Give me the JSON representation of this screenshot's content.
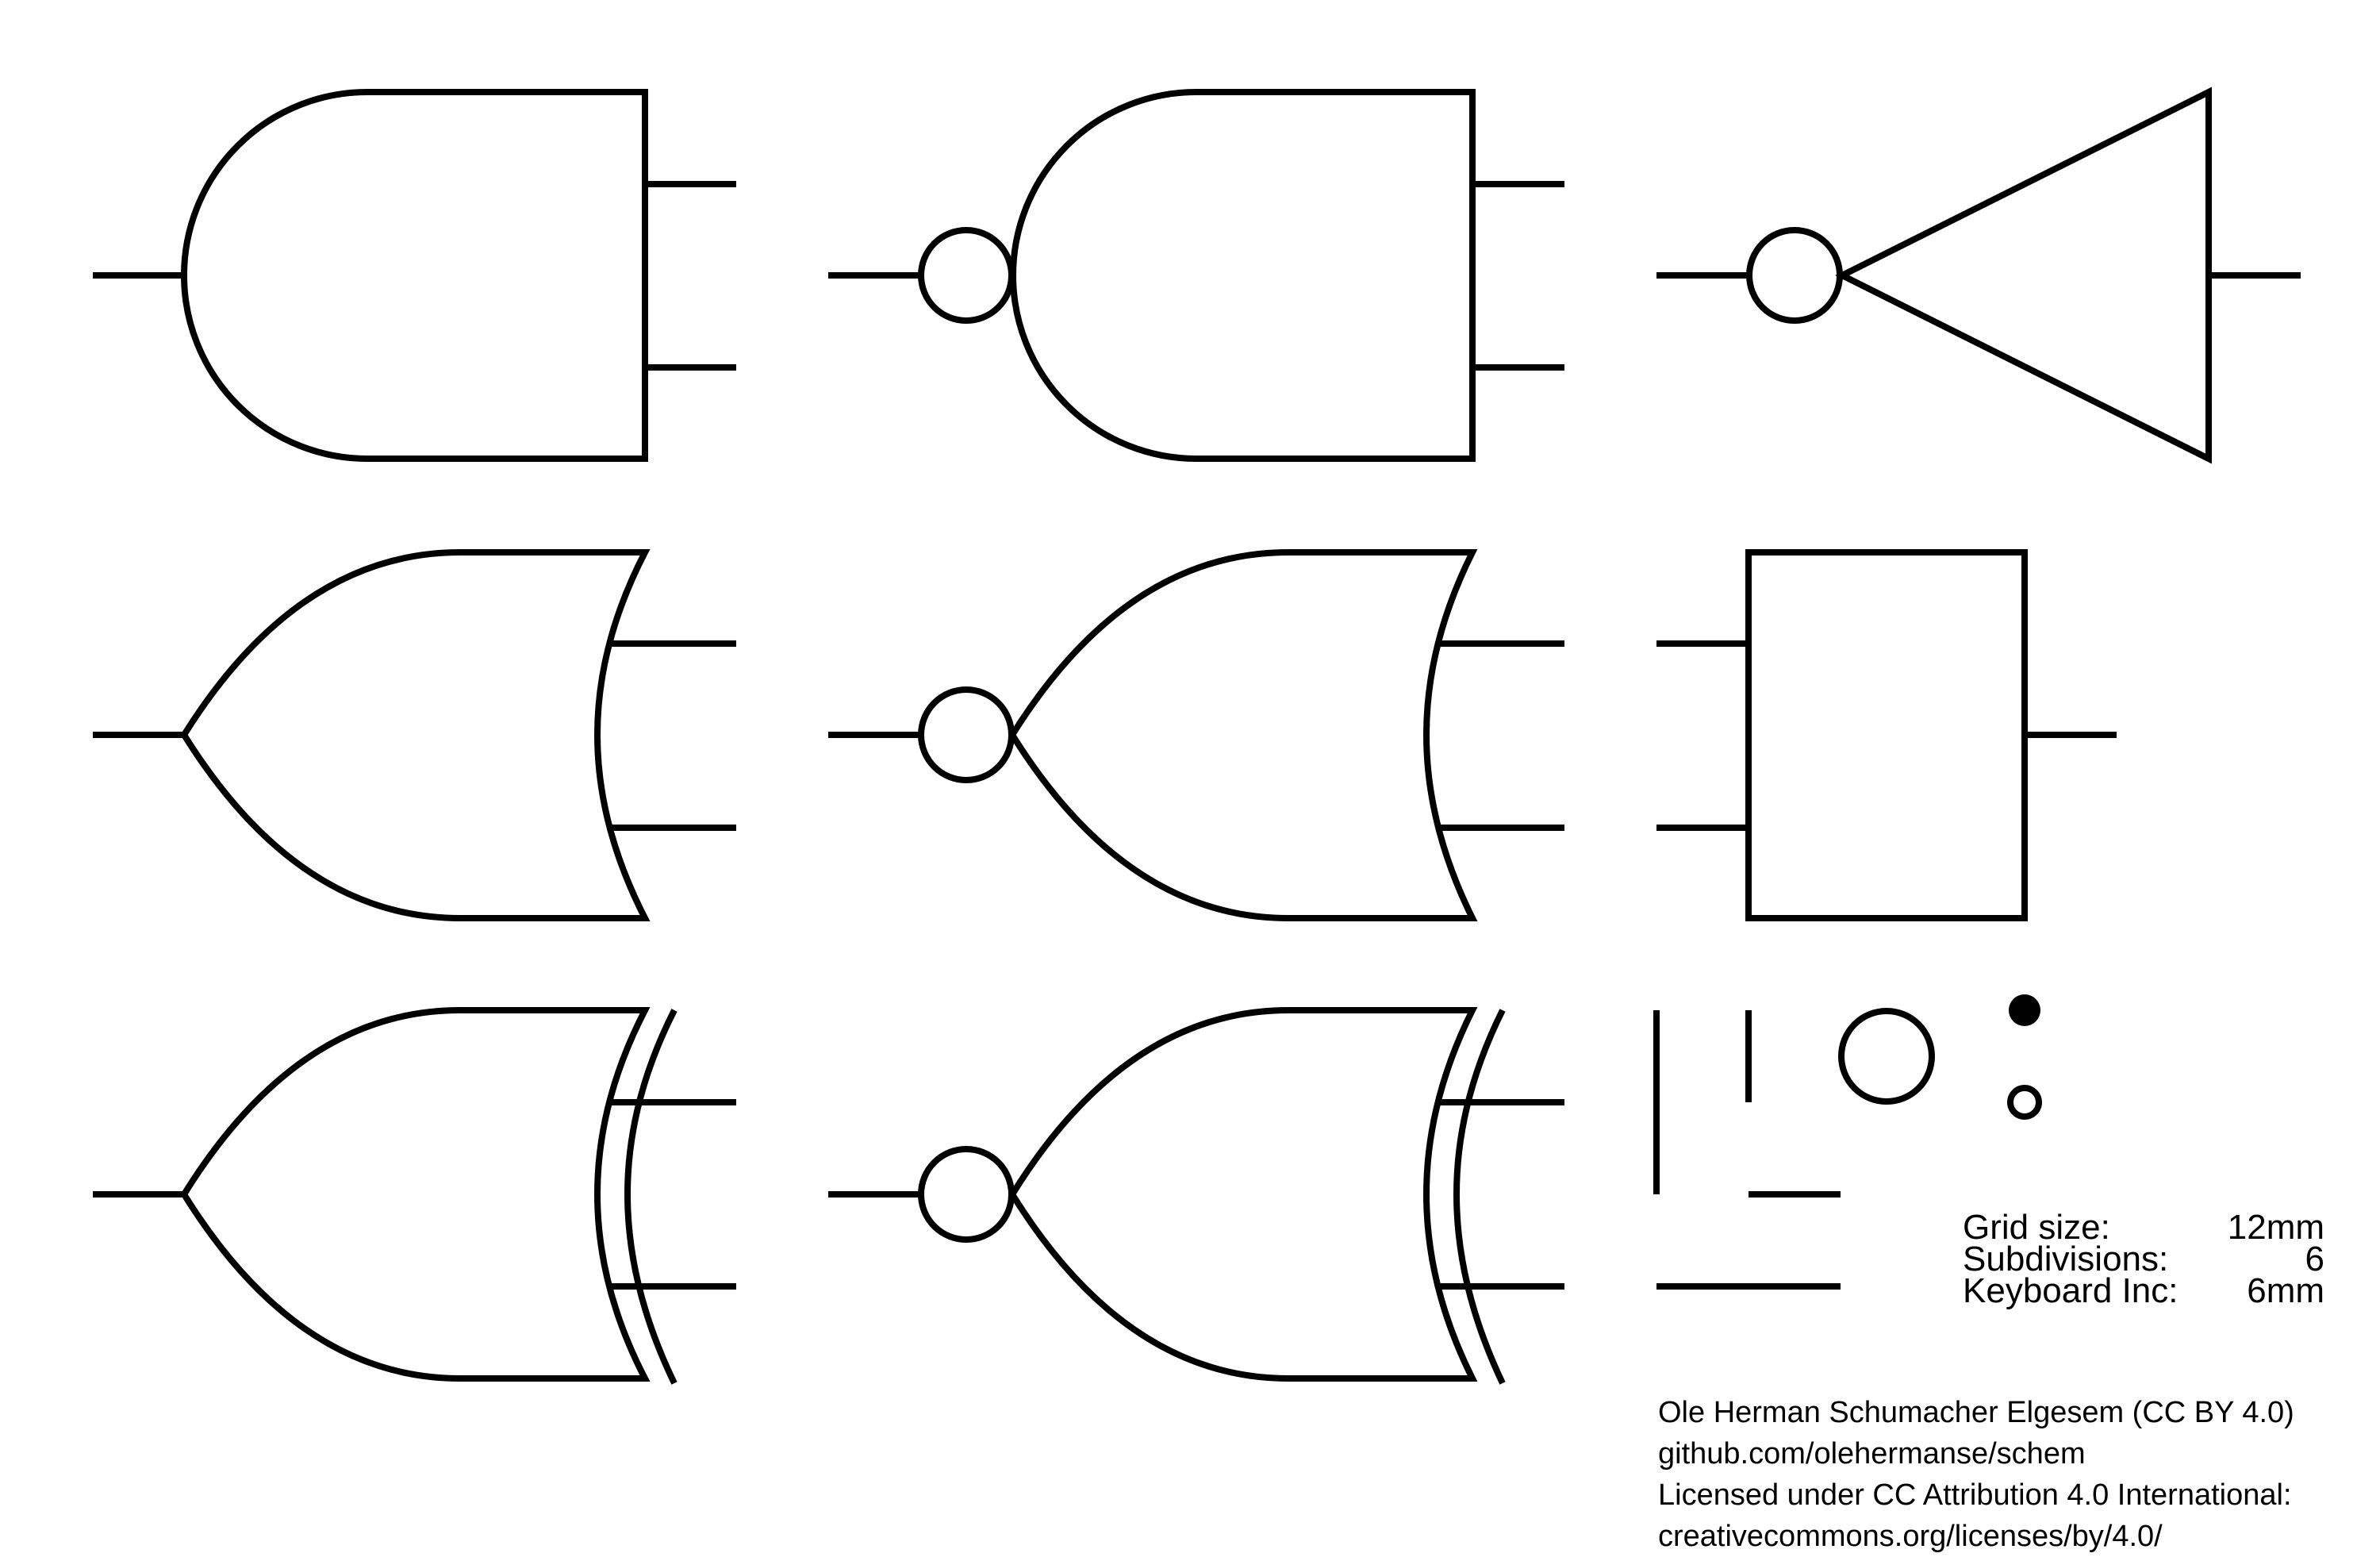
{
  "legend": {
    "grid_size_label": "Grid size:",
    "grid_size_value": "12mm",
    "subdivisions_label": "Subdivisions:",
    "subdivisions_value": "6",
    "keyboard_inc_label": "Keyboard Inc:",
    "keyboard_inc_value": "6mm"
  },
  "credits": {
    "author": "Ole Herman Schumacher Elgesem (CC BY 4.0)",
    "repo": "github.com/olehermanse/schem",
    "license": "Licensed under CC Attribution 4.0 International:",
    "license_url": "creativecommons.org/licenses/by/4.0/"
  },
  "colors": {
    "stroke": "#000000",
    "background": "#ffffff"
  },
  "symbols": [
    "and-gate",
    "nand-gate",
    "not-gate",
    "or-gate",
    "nor-gate",
    "buffer-block",
    "xor-gate",
    "xnor-gate",
    "wire-primitives"
  ]
}
